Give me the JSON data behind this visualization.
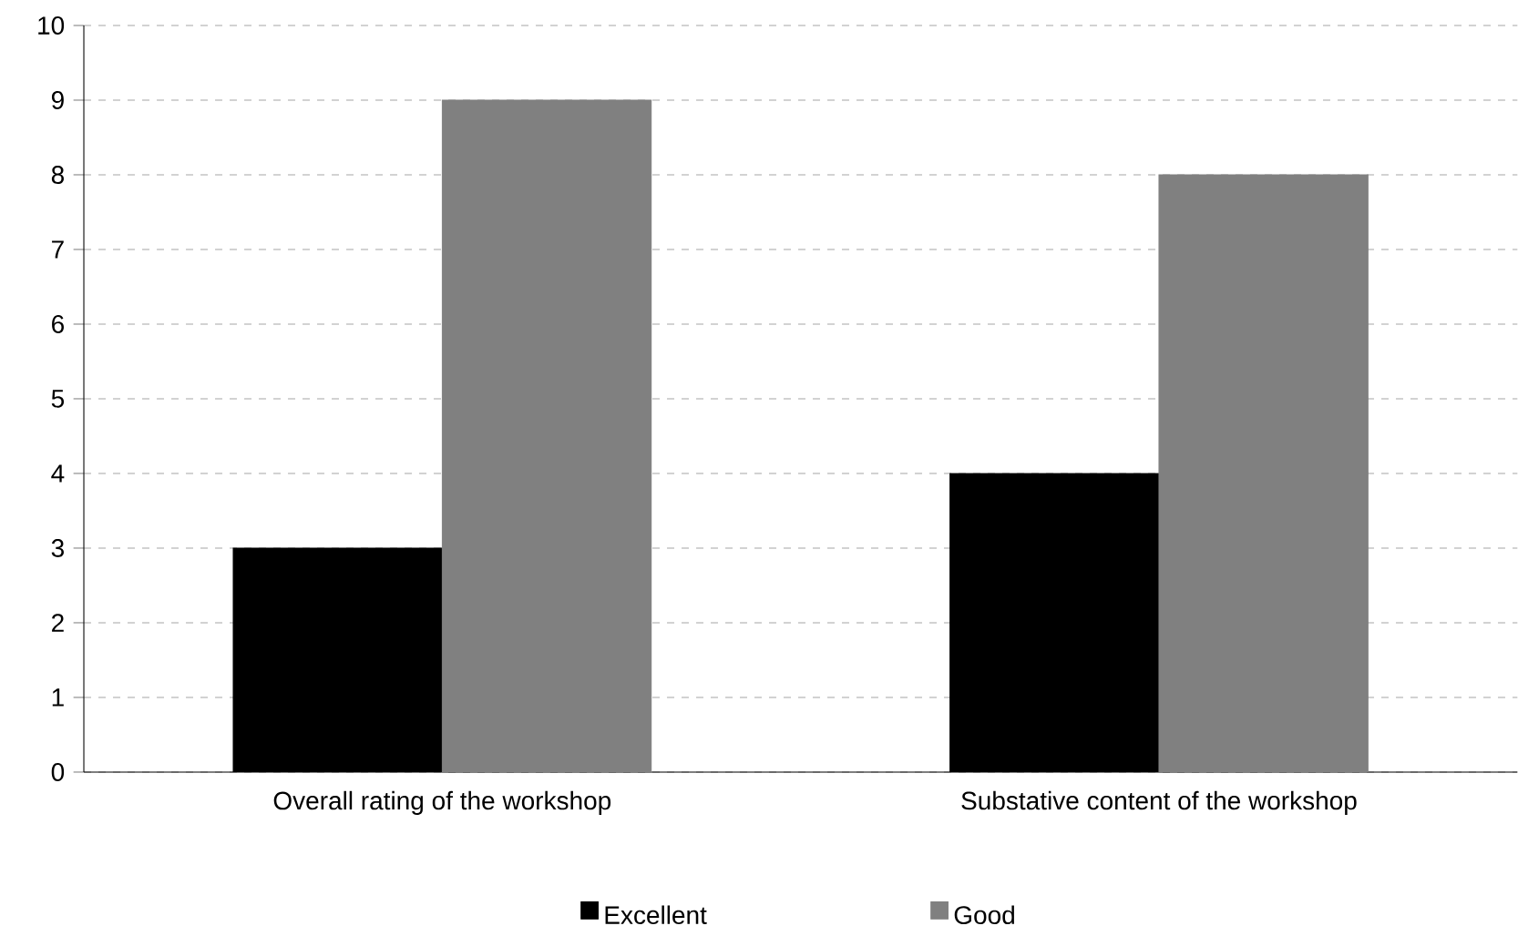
{
  "chart_data": {
    "type": "bar",
    "categories": [
      "Overall rating of the workshop",
      "Substative content of the workshop"
    ],
    "series": [
      {
        "name": "Excellent",
        "color": "#000000",
        "values": [
          3,
          4
        ]
      },
      {
        "name": "Good",
        "color": "#808080",
        "values": [
          9,
          8
        ]
      }
    ],
    "ylim": [
      0,
      10
    ],
    "yticks": [
      0,
      1,
      2,
      3,
      4,
      5,
      6,
      7,
      8,
      9,
      10
    ],
    "grid": "y",
    "legend": "bottom"
  }
}
